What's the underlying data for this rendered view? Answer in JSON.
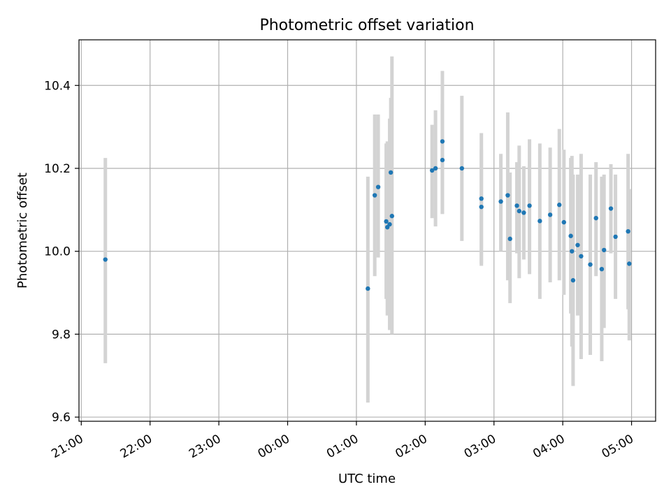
{
  "chart_data": {
    "type": "scatter",
    "title": "Photometric offset variation",
    "xlabel": "UTC time",
    "ylabel": "Photometric offset",
    "grid": true,
    "x_ticks": [
      "21:00",
      "22:00",
      "23:00",
      "00:00",
      "01:00",
      "02:00",
      "03:00",
      "04:00",
      "05:00"
    ],
    "y_ticks": [
      "9.6",
      "9.8",
      "10.0",
      "10.2",
      "10.4"
    ],
    "xlim": [
      "20:58",
      "05:21"
    ],
    "ylim": [
      9.59,
      10.51
    ],
    "colors": {
      "point": "#1f77b4",
      "errorbar": "#d3d3d3"
    },
    "series": [
      {
        "points": [
          {
            "t": "21:21",
            "y": 9.98,
            "lo": 9.73,
            "hi": 10.225
          },
          {
            "t": "01:10",
            "y": 9.91,
            "lo": 9.635,
            "hi": 10.18
          },
          {
            "t": "01:16",
            "y": 10.135,
            "lo": 9.94,
            "hi": 10.33
          },
          {
            "t": "01:19",
            "y": 10.155,
            "lo": 9.985,
            "hi": 10.33
          },
          {
            "t": "01:26",
            "y": 10.072,
            "lo": 9.885,
            "hi": 10.26
          },
          {
            "t": "01:27",
            "y": 10.058,
            "lo": 9.845,
            "hi": 10.265
          },
          {
            "t": "01:29",
            "y": 10.065,
            "lo": 9.81,
            "hi": 10.32
          },
          {
            "t": "01:30",
            "y": 10.19,
            "lo": 9.9,
            "hi": 10.37
          },
          {
            "t": "01:31",
            "y": 10.085,
            "lo": 9.8,
            "hi": 10.47
          },
          {
            "t": "02:06",
            "y": 10.195,
            "lo": 10.08,
            "hi": 10.305
          },
          {
            "t": "02:09",
            "y": 10.2,
            "lo": 10.06,
            "hi": 10.34
          },
          {
            "t": "02:15",
            "y": 10.22,
            "lo": 10.09,
            "hi": 10.355
          },
          {
            "t": "02:15",
            "y": 10.265,
            "lo": 10.09,
            "hi": 10.435
          },
          {
            "t": "02:32",
            "y": 10.2,
            "lo": 10.025,
            "hi": 10.375
          },
          {
            "t": "02:49",
            "y": 10.127,
            "lo": 9.965,
            "hi": 10.285
          },
          {
            "t": "02:49",
            "y": 10.107,
            "lo": 9.97,
            "hi": 10.245
          },
          {
            "t": "03:06",
            "y": 10.12,
            "lo": 10.0,
            "hi": 10.235
          },
          {
            "t": "03:12",
            "y": 10.135,
            "lo": 9.93,
            "hi": 10.335
          },
          {
            "t": "03:14",
            "y": 10.03,
            "lo": 9.875,
            "hi": 10.19
          },
          {
            "t": "03:20",
            "y": 10.11,
            "lo": 9.995,
            "hi": 10.215
          },
          {
            "t": "03:22",
            "y": 10.097,
            "lo": 9.935,
            "hi": 10.255
          },
          {
            "t": "03:26",
            "y": 10.093,
            "lo": 9.98,
            "hi": 10.205
          },
          {
            "t": "03:31",
            "y": 10.11,
            "lo": 9.945,
            "hi": 10.27
          },
          {
            "t": "03:40",
            "y": 10.073,
            "lo": 9.885,
            "hi": 10.26
          },
          {
            "t": "03:49",
            "y": 10.088,
            "lo": 9.925,
            "hi": 10.25
          },
          {
            "t": "03:57",
            "y": 10.112,
            "lo": 9.93,
            "hi": 10.295
          },
          {
            "t": "04:01",
            "y": 10.07,
            "lo": 9.895,
            "hi": 10.245
          },
          {
            "t": "04:07",
            "y": 10.037,
            "lo": 9.85,
            "hi": 10.225
          },
          {
            "t": "04:08",
            "y": 10.0,
            "lo": 9.77,
            "hi": 10.23
          },
          {
            "t": "04:09",
            "y": 9.93,
            "lo": 9.675,
            "hi": 10.185
          },
          {
            "t": "04:13",
            "y": 10.015,
            "lo": 9.845,
            "hi": 10.185
          },
          {
            "t": "04:16",
            "y": 9.988,
            "lo": 9.74,
            "hi": 10.235
          },
          {
            "t": "04:24",
            "y": 9.968,
            "lo": 9.75,
            "hi": 10.185
          },
          {
            "t": "04:29",
            "y": 10.08,
            "lo": 9.94,
            "hi": 10.215
          },
          {
            "t": "04:34",
            "y": 9.957,
            "lo": 9.735,
            "hi": 10.18
          },
          {
            "t": "04:36",
            "y": 10.003,
            "lo": 9.815,
            "hi": 10.185
          },
          {
            "t": "04:42",
            "y": 10.103,
            "lo": 9.995,
            "hi": 10.21
          },
          {
            "t": "04:46",
            "y": 10.035,
            "lo": 9.885,
            "hi": 10.185
          },
          {
            "t": "04:57",
            "y": 10.048,
            "lo": 9.86,
            "hi": 10.235
          },
          {
            "t": "04:58",
            "y": 9.97,
            "lo": 9.785,
            "hi": 10.15
          }
        ]
      }
    ]
  }
}
